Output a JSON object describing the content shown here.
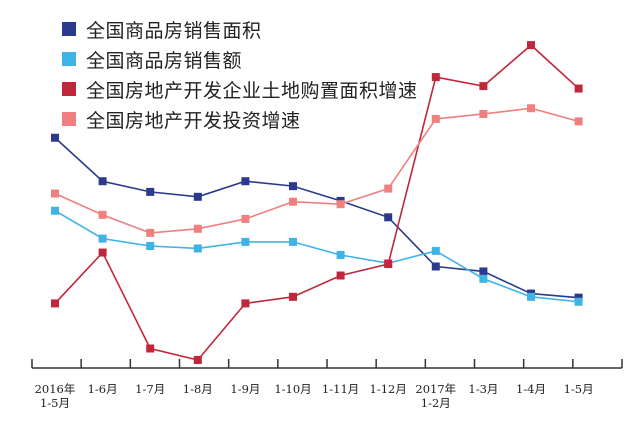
{
  "chart_data": {
    "type": "line",
    "categories": [
      [
        "2016年",
        "1-5月"
      ],
      [
        "1-6月"
      ],
      [
        "1-7月"
      ],
      [
        "1-8月"
      ],
      [
        "1-9月"
      ],
      [
        "1-10月"
      ],
      [
        "1-11月"
      ],
      [
        "1-12月"
      ],
      [
        "2017年",
        "1-2月"
      ],
      [
        "1-3月"
      ],
      [
        "1-4月"
      ],
      [
        "1-5月"
      ]
    ],
    "series": [
      {
        "name": "全国商品房销售面积",
        "color": "#2b3a8c",
        "values": [
          33.2,
          27.9,
          26.6,
          26.0,
          27.9,
          27.3,
          25.5,
          23.5,
          17.5,
          16.9,
          14.2,
          13.7
        ]
      },
      {
        "name": "全国商品房销售额",
        "color": "#3fb3e3",
        "values": [
          24.3,
          20.9,
          20.0,
          19.7,
          20.5,
          20.5,
          18.9,
          17.9,
          19.4,
          16.0,
          13.8,
          13.2
        ]
      },
      {
        "name": "全国房地产开发企业土地购置面积增速",
        "color": "#c0273b",
        "values": [
          13.0,
          19.2,
          7.5,
          6.1,
          13.0,
          13.8,
          16.4,
          17.8,
          40.6,
          39.5,
          44.5,
          39.2
        ]
      },
      {
        "name": "全国房地产开发投资增速",
        "color": "#f08080",
        "values": [
          26.4,
          23.8,
          21.6,
          22.1,
          23.3,
          25.4,
          25.1,
          27.0,
          35.5,
          36.1,
          36.8,
          35.2
        ]
      }
    ],
    "ylim": [
      0,
      50
    ],
    "grid": false,
    "legend": "top-left"
  }
}
